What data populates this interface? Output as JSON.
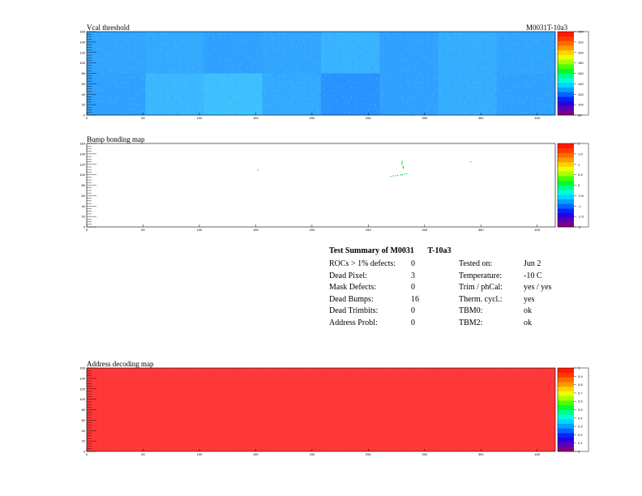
{
  "header": {
    "left_title": "Vcal threshold",
    "right_title": "M0031T-10a3"
  },
  "colors": {
    "frame": "#000000",
    "dot": "#22cc66",
    "address_fill": "#ff3a3a",
    "palette": [
      "#800080",
      "#5a00b4",
      "#2a00e0",
      "#0024ff",
      "#0066ff",
      "#00a0ff",
      "#00d6ff",
      "#00ffd8",
      "#00ff8a",
      "#00ff2a",
      "#4aff00",
      "#a8ff00",
      "#eaff00",
      "#ffd400",
      "#ff9a00",
      "#ff6a00",
      "#ff3a00",
      "#ff1a00"
    ]
  },
  "chart_data": [
    {
      "type": "heatmap",
      "title": "Vcal threshold",
      "annotation": "M0031T-10a3",
      "xlim": [
        0,
        416
      ],
      "ylim": [
        0,
        160
      ],
      "x_ticks": [
        "0",
        "50",
        "100",
        "150",
        "200",
        "250",
        "300",
        "350",
        "400"
      ],
      "y_ticks": [
        "0",
        "20",
        "40",
        "60",
        "80",
        "100",
        "120",
        "140",
        "160"
      ],
      "z_ticks": [
        "80",
        "100",
        "120",
        "140",
        "160",
        "180",
        "200",
        "220",
        "240"
      ],
      "grid": false,
      "rocs": [
        {
          "row": "top",
          "index": 0,
          "mean": 120
        },
        {
          "row": "top",
          "index": 1,
          "mean": 122
        },
        {
          "row": "top",
          "index": 2,
          "mean": 118
        },
        {
          "row": "top",
          "index": 3,
          "mean": 120
        },
        {
          "row": "top",
          "index": 4,
          "mean": 126
        },
        {
          "row": "top",
          "index": 5,
          "mean": 118
        },
        {
          "row": "top",
          "index": 6,
          "mean": 124
        },
        {
          "row": "top",
          "index": 7,
          "mean": 120
        },
        {
          "row": "bottom",
          "index": 0,
          "mean": 118
        },
        {
          "row": "bottom",
          "index": 1,
          "mean": 128
        },
        {
          "row": "bottom",
          "index": 2,
          "mean": 132
        },
        {
          "row": "bottom",
          "index": 3,
          "mean": 122
        },
        {
          "row": "bottom",
          "index": 4,
          "mean": 112
        },
        {
          "row": "bottom",
          "index": 5,
          "mean": 118
        },
        {
          "row": "bottom",
          "index": 6,
          "mean": 124
        },
        {
          "row": "bottom",
          "index": 7,
          "mean": 118
        }
      ]
    },
    {
      "type": "scatter",
      "title": "Bump bonding map",
      "xlim": [
        0,
        416
      ],
      "ylim": [
        0,
        160
      ],
      "x_ticks": [
        "0",
        "50",
        "100",
        "150",
        "200",
        "250",
        "300",
        "350",
        "400"
      ],
      "y_ticks": [
        "0",
        "20",
        "40",
        "60",
        "80",
        "100",
        "120",
        "140",
        "160"
      ],
      "z_ticks": [
        "-2",
        "-1.5",
        "-1",
        "-0.5",
        "0",
        "0.5",
        "1",
        "1.5",
        "2"
      ],
      "points": [
        {
          "x": 152,
          "y": 109
        },
        {
          "x": 270,
          "y": 97
        },
        {
          "x": 272,
          "y": 98
        },
        {
          "x": 274,
          "y": 98
        },
        {
          "x": 276,
          "y": 99
        },
        {
          "x": 279,
          "y": 100
        },
        {
          "x": 280,
          "y": 100
        },
        {
          "x": 280,
          "y": 120
        },
        {
          "x": 280,
          "y": 123
        },
        {
          "x": 280,
          "y": 126
        },
        {
          "x": 281,
          "y": 113
        },
        {
          "x": 281,
          "y": 114
        },
        {
          "x": 281,
          "y": 116
        },
        {
          "x": 282,
          "y": 101
        },
        {
          "x": 284,
          "y": 102
        },
        {
          "x": 341,
          "y": 125
        }
      ]
    },
    {
      "type": "heatmap",
      "title": "Address decoding map",
      "xlim": [
        0,
        416
      ],
      "ylim": [
        0,
        160
      ],
      "x_ticks": [
        "0",
        "50",
        "100",
        "150",
        "200",
        "250",
        "300",
        "350",
        "400"
      ],
      "y_ticks": [
        "0",
        "20",
        "40",
        "60",
        "80",
        "100",
        "120",
        "140",
        "160"
      ],
      "z_ticks": [
        "0",
        "0.1",
        "0.2",
        "0.3",
        "0.4",
        "0.5",
        "0.6",
        "0.7",
        "0.8",
        "0.9",
        "1"
      ],
      "value": 1
    }
  ],
  "summary": {
    "title": "Test Summary of M0031",
    "title_suffix": "T-10a3",
    "left": [
      {
        "label": "ROCs > 1% defects:",
        "value": "0"
      },
      {
        "label": "Dead Pixel:",
        "value": "3"
      },
      {
        "label": "Mask Defects:",
        "value": "0"
      },
      {
        "label": "Dead Bumps:",
        "value": "16"
      },
      {
        "label": "Dead Trimbits:",
        "value": "0"
      },
      {
        "label": "Address Probl:",
        "value": "0"
      }
    ],
    "right": [
      {
        "label": "Tested on:",
        "value": "Jun 2"
      },
      {
        "label": "Temperature:",
        "value": "-10 C"
      },
      {
        "label": "Trim / phCal:",
        "value": "yes / yes"
      },
      {
        "label": "Therm. cycl.:",
        "value": "yes"
      },
      {
        "label": "TBM0:",
        "value": "ok"
      },
      {
        "label": "TBM2:",
        "value": "ok"
      }
    ]
  }
}
